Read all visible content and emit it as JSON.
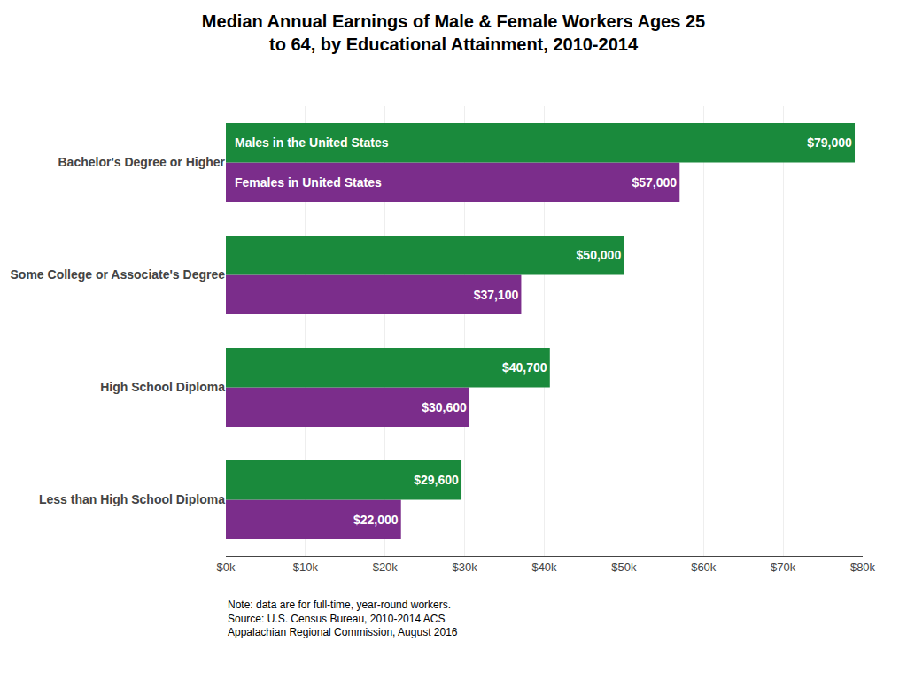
{
  "chart_data": {
    "type": "bar",
    "orientation": "horizontal",
    "title": "Median Annual Earnings of Male & Female Workers Ages 25\nto 64, by Educational Attainment, 2010-2014",
    "categories": [
      "Less than High School Diploma",
      "High School Diploma",
      "Some College or Associate's Degree",
      "Bachelor's Degree or Higher"
    ],
    "series": [
      {
        "name": "Males in the United States",
        "color": "#1a8a3c",
        "values": [
          29600,
          40700,
          50000,
          79000
        ],
        "value_labels": [
          "$29,600",
          "$40,700",
          "$50,000",
          "$79,000"
        ]
      },
      {
        "name": "Females in United States",
        "color": "#7b2d8b",
        "values": [
          22000,
          30600,
          37100,
          57000
        ],
        "value_labels": [
          "$22,000",
          "$30,600",
          "$37,100",
          "$57,000"
        ]
      }
    ],
    "xlim": [
      0,
      80000
    ],
    "xticks": [
      {
        "value": 0,
        "label": "$0k"
      },
      {
        "value": 10000,
        "label": "$10k"
      },
      {
        "value": 20000,
        "label": "$20k"
      },
      {
        "value": 30000,
        "label": "$30k"
      },
      {
        "value": 40000,
        "label": "$40k"
      },
      {
        "value": 50000,
        "label": "$50k"
      },
      {
        "value": 60000,
        "label": "$60k"
      },
      {
        "value": 70000,
        "label": "$70k"
      },
      {
        "value": 80000,
        "label": "$80k"
      }
    ],
    "grid": true,
    "data_labels": true,
    "annotations": [
      "Note: data are for full-time, year-round workers.\nSource: U.S. Census Bureau, 2010-2014 ACS\nAppalachian Regional Commission, August 2016"
    ]
  }
}
